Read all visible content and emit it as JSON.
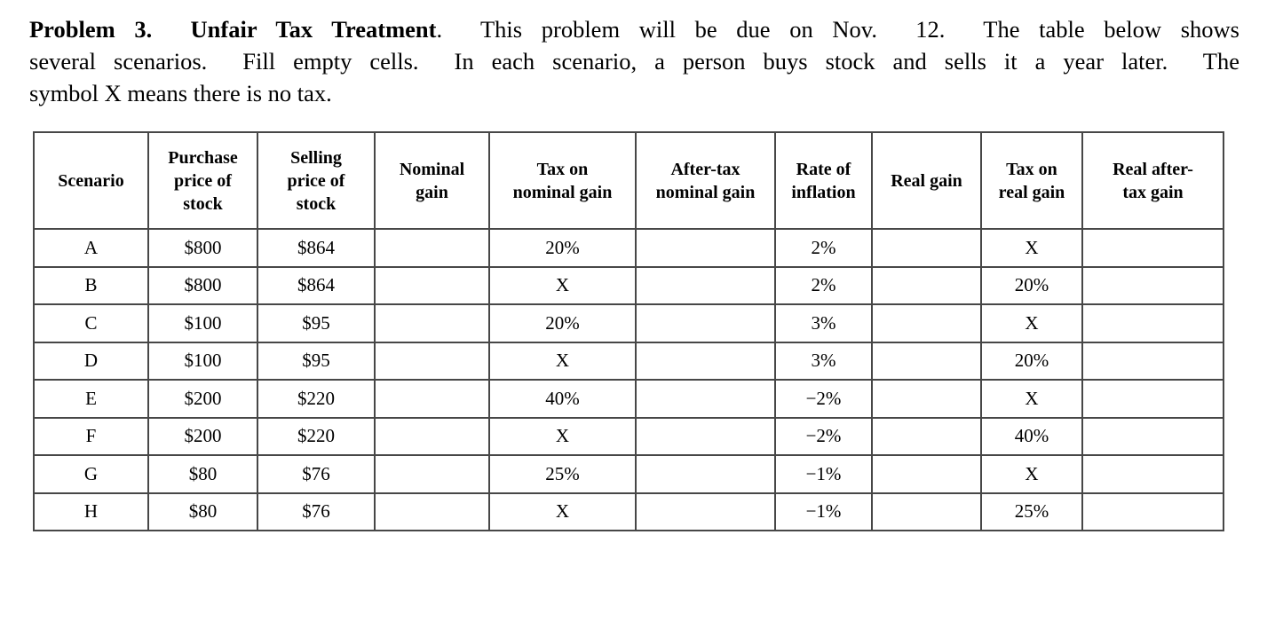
{
  "page": {
    "background": "#ffffff",
    "text_color": "#000000",
    "table_border_color": "#474747"
  },
  "problem": {
    "line1_bold": "Problem 3.  Unfair Tax Treatment",
    "line1_rest": ".  This problem will be due on Nov.  12.  The table below shows",
    "line2": "several scenarios.  Fill empty cells.  In each scenario, a person buys stock and sells it a year later.  The",
    "line3": "symbol X means there is no tax."
  },
  "table": {
    "headers": [
      "Scenario",
      "Purchase\nprice of\nstock",
      "Selling\nprice of\nstock",
      "Nominal\ngain",
      "Tax on\nnominal gain",
      "After-tax\nnominal gain",
      "Rate of\ninflation",
      "Real gain",
      "Tax on\nreal gain",
      "Real after-\ntax gain"
    ],
    "rows": [
      [
        "A",
        "$800",
        "$864",
        "",
        "20%",
        "",
        "2%",
        "",
        "X",
        ""
      ],
      [
        "B",
        "$800",
        "$864",
        "",
        "X",
        "",
        "2%",
        "",
        "20%",
        ""
      ],
      [
        "C",
        "$100",
        "$95",
        "",
        "20%",
        "",
        "3%",
        "",
        "X",
        ""
      ],
      [
        "D",
        "$100",
        "$95",
        "",
        "X",
        "",
        "3%",
        "",
        "20%",
        ""
      ],
      [
        "E",
        "$200",
        "$220",
        "",
        "40%",
        "",
        "−2%",
        "",
        "X",
        ""
      ],
      [
        "F",
        "$200",
        "$220",
        "",
        "X",
        "",
        "−2%",
        "",
        "40%",
        ""
      ],
      [
        "G",
        "$80",
        "$76",
        "",
        "25%",
        "",
        "−1%",
        "",
        "X",
        ""
      ],
      [
        "H",
        "$80",
        "$76",
        "",
        "X",
        "",
        "−1%",
        "",
        "25%",
        ""
      ]
    ]
  }
}
